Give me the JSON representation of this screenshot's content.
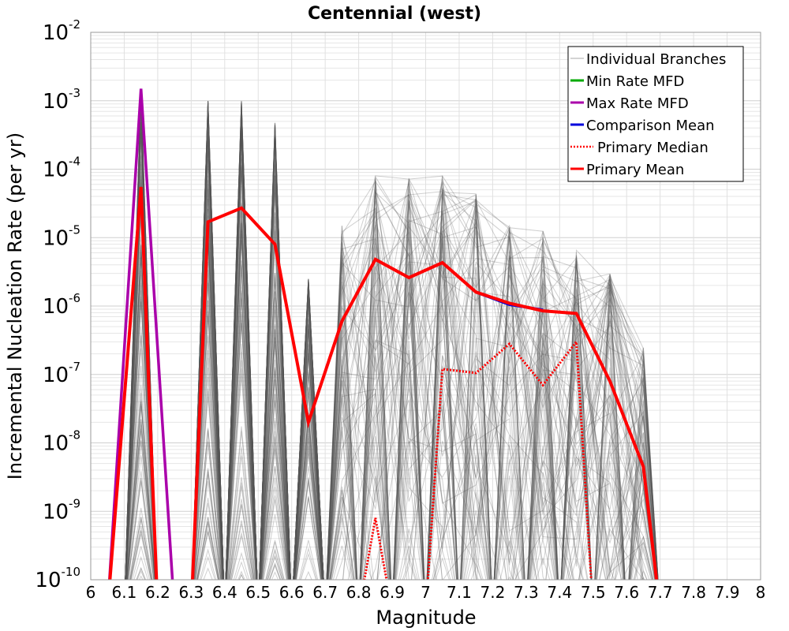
{
  "chart_data": {
    "type": "line",
    "title": "Centennial (west)",
    "xlabel": "Magnitude",
    "ylabel": "Incremental Nucleation Rate (per yr)",
    "xlim": [
      6.0,
      8.0
    ],
    "ylim": [
      1e-10,
      0.01
    ],
    "y_scale": "log",
    "grid": true,
    "legend_position": "top-right",
    "x_tick_labels": [
      "6",
      "6.1",
      "6.2",
      "6.3",
      "6.4",
      "6.5",
      "6.6",
      "6.7",
      "6.8",
      "6.9",
      "7",
      "7.1",
      "7.2",
      "7.3",
      "7.4",
      "7.5",
      "7.6",
      "7.7",
      "7.8",
      "7.9",
      "8"
    ],
    "y_ticks": [
      {
        "base": "10",
        "exp": "-2",
        "value": 0.01
      },
      {
        "base": "10",
        "exp": "-3",
        "value": 0.001
      },
      {
        "base": "10",
        "exp": "-4",
        "value": 0.0001
      },
      {
        "base": "10",
        "exp": "-5",
        "value": 1e-05
      },
      {
        "base": "10",
        "exp": "-6",
        "value": 1e-06
      },
      {
        "base": "10",
        "exp": "-7",
        "value": 1e-07
      },
      {
        "base": "10",
        "exp": "-8",
        "value": 1e-08
      },
      {
        "base": "10",
        "exp": "-9",
        "value": 1e-09
      },
      {
        "base": "10",
        "exp": "-10",
        "value": 1e-10
      }
    ],
    "series": [
      {
        "name": "Individual Branches",
        "color": "#555555",
        "style": "thin",
        "peaks": [
          {
            "x": 6.15,
            "y_max": 0.0015
          },
          {
            "x": 6.35,
            "y_max": 0.001
          },
          {
            "x": 6.45,
            "y_max": 0.001
          },
          {
            "x": 6.55,
            "y_max": 0.00048
          },
          {
            "x": 6.65,
            "y_max": 2.5e-06
          },
          {
            "x": 6.75,
            "y_max": 1.5e-05
          },
          {
            "x": 6.85,
            "y_max": 8e-05
          },
          {
            "x": 6.95,
            "y_max": 7.5e-05
          },
          {
            "x": 7.05,
            "y_max": 8e-05
          },
          {
            "x": 7.15,
            "y_max": 4.5e-05
          },
          {
            "x": 7.25,
            "y_max": 1.5e-05
          },
          {
            "x": 7.35,
            "y_max": 1.3e-05
          },
          {
            "x": 7.45,
            "y_max": 7e-06
          },
          {
            "x": 7.55,
            "y_max": 3e-06
          },
          {
            "x": 7.65,
            "y_max": 2.5e-07
          }
        ]
      },
      {
        "name": "Min Rate MFD",
        "color": "#00aa00",
        "style": "solid",
        "x": [],
        "y": []
      },
      {
        "name": "Max Rate MFD",
        "color": "#aa00aa",
        "style": "solid",
        "x": [
          6.05,
          6.15,
          6.25
        ],
        "y": [
          1e-12,
          0.0015,
          1e-12
        ]
      },
      {
        "name": "Comparison Mean",
        "color": "#0000dd",
        "style": "solid",
        "x": [
          7.15,
          7.25,
          7.35
        ],
        "y": [
          1.6e-06,
          1.05e-06,
          8.8e-07
        ]
      },
      {
        "name": "Primary Median",
        "color": "#ff0000",
        "style": "dotted",
        "x": [
          6.85,
          7.05,
          7.15,
          7.25,
          7.35,
          7.45
        ],
        "y": [
          8e-10,
          1.2e-07,
          1.05e-07,
          2.8e-07,
          7e-08,
          3e-07
        ]
      },
      {
        "name": "Primary Mean",
        "color": "#ff0000",
        "style": "thick",
        "x": [
          6.15,
          6.35,
          6.45,
          6.55,
          6.65,
          6.75,
          6.85,
          6.95,
          7.05,
          7.15,
          7.25,
          7.35,
          7.45,
          7.55,
          7.65
        ],
        "y": [
          5.5e-05,
          1.7e-05,
          2.7e-05,
          8e-06,
          2e-08,
          6e-07,
          4.8e-06,
          2.6e-06,
          4.3e-06,
          1.6e-06,
          1.1e-06,
          8.5e-07,
          7.8e-07,
          8e-08,
          4.5e-09
        ]
      }
    ]
  }
}
